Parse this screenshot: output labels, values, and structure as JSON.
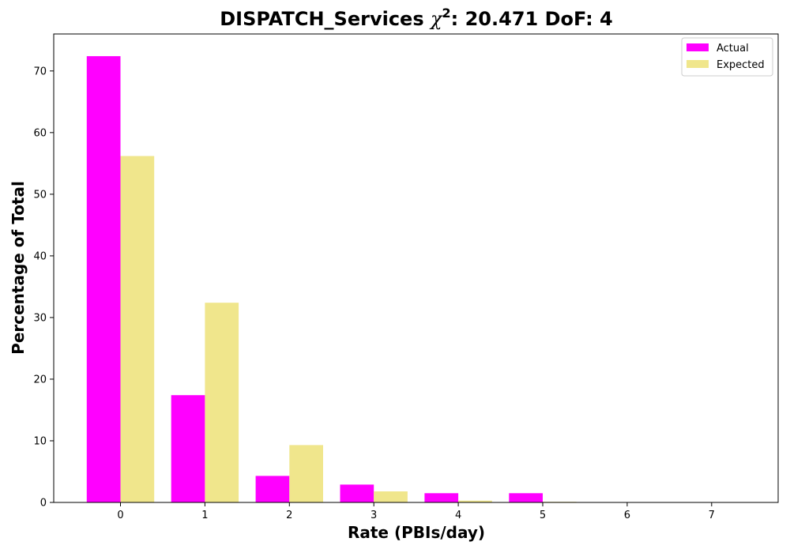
{
  "chart_data": {
    "type": "bar",
    "title_prefix": "DISPATCH_Services ",
    "title_symbol": "χ",
    "title_superscript": "2",
    "title_suffix": ": 20.471 DoF: 4",
    "xlabel": "Rate (PBIs/day)",
    "ylabel": "Percentage of Total",
    "categories": [
      "0",
      "1",
      "2",
      "3",
      "4",
      "5",
      "6",
      "7"
    ],
    "series": [
      {
        "name": "Actual",
        "color": "#ff00ff",
        "values": [
          72.4,
          17.4,
          4.3,
          2.9,
          1.5,
          1.5,
          0,
          0
        ]
      },
      {
        "name": "Expected",
        "color": "#f0e68c",
        "values": [
          56.2,
          32.4,
          9.3,
          1.8,
          0.3,
          0.1,
          0,
          0
        ]
      }
    ],
    "ylim": [
      0,
      76
    ],
    "yticks": [
      0,
      10,
      20,
      30,
      40,
      50,
      60,
      70
    ],
    "legend": "top-right",
    "grid": false
  }
}
